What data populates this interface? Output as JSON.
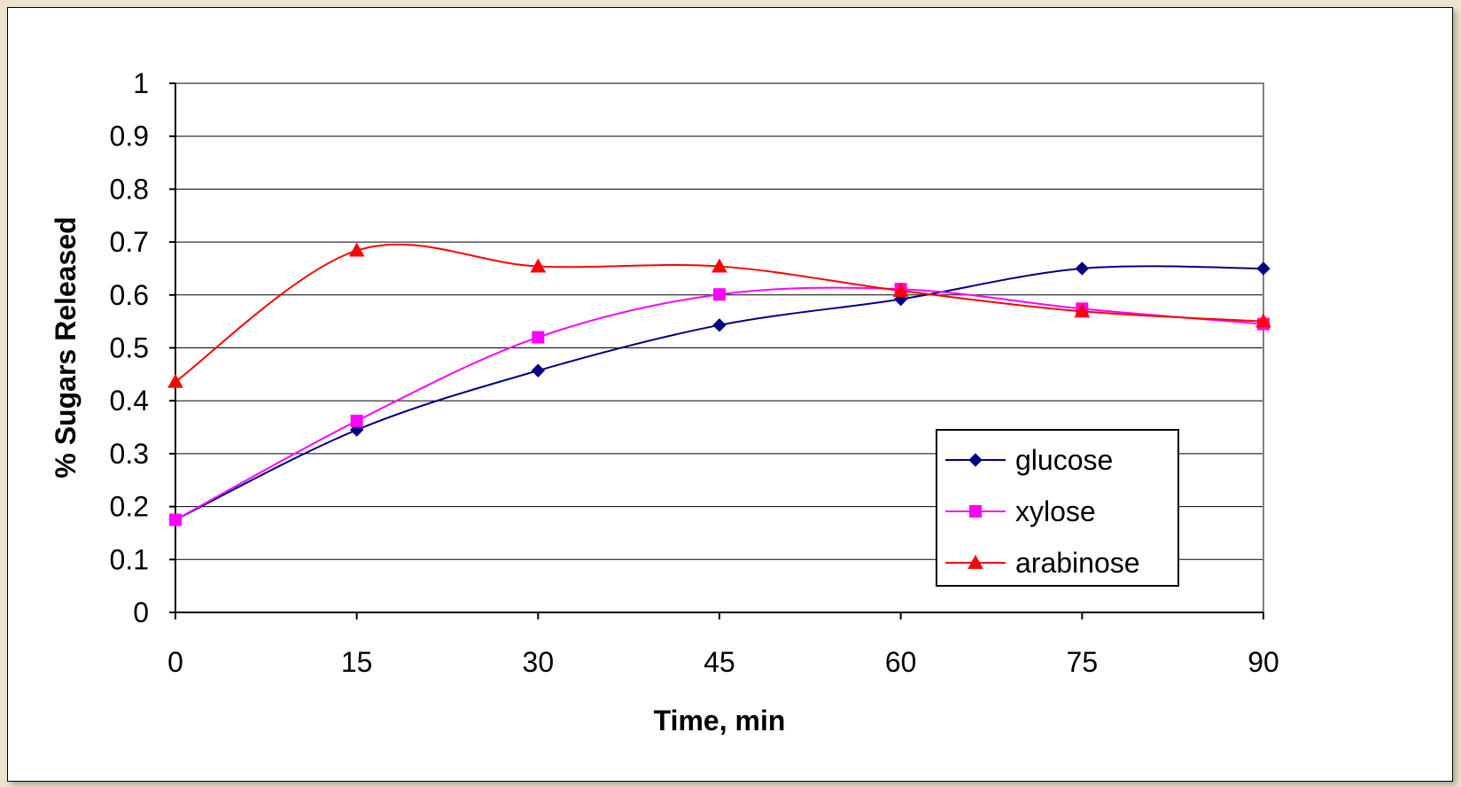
{
  "chart_data": {
    "type": "line",
    "title": "",
    "xlabel": "Time, min",
    "ylabel": "% Sugars Released",
    "x": [
      0,
      15,
      30,
      45,
      60,
      75,
      90
    ],
    "xlim": [
      0,
      90
    ],
    "ylim": [
      0,
      1
    ],
    "x_ticks": [
      "0",
      "15",
      "30",
      "45",
      "60",
      "75",
      "90"
    ],
    "y_ticks": [
      "0",
      "0.1",
      "0.2",
      "0.3",
      "0.4",
      "0.5",
      "0.6",
      "0.7",
      "0.8",
      "0.9",
      "1"
    ],
    "grid": "horizontal",
    "legend_position": "lower-right",
    "series": [
      {
        "name": "glucose",
        "color": "#000080",
        "marker": "diamond",
        "values": [
          0.175,
          0.345,
          0.457,
          0.543,
          0.592,
          0.65,
          0.65
        ]
      },
      {
        "name": "xylose",
        "color": "#ff00ff",
        "marker": "square",
        "values": [
          0.175,
          0.362,
          0.52,
          0.601,
          0.611,
          0.574,
          0.545
        ]
      },
      {
        "name": "arabinose",
        "color": "#ff0000",
        "marker": "triangle",
        "values": [
          0.436,
          0.684,
          0.654,
          0.654,
          0.608,
          0.569,
          0.55
        ]
      }
    ]
  }
}
